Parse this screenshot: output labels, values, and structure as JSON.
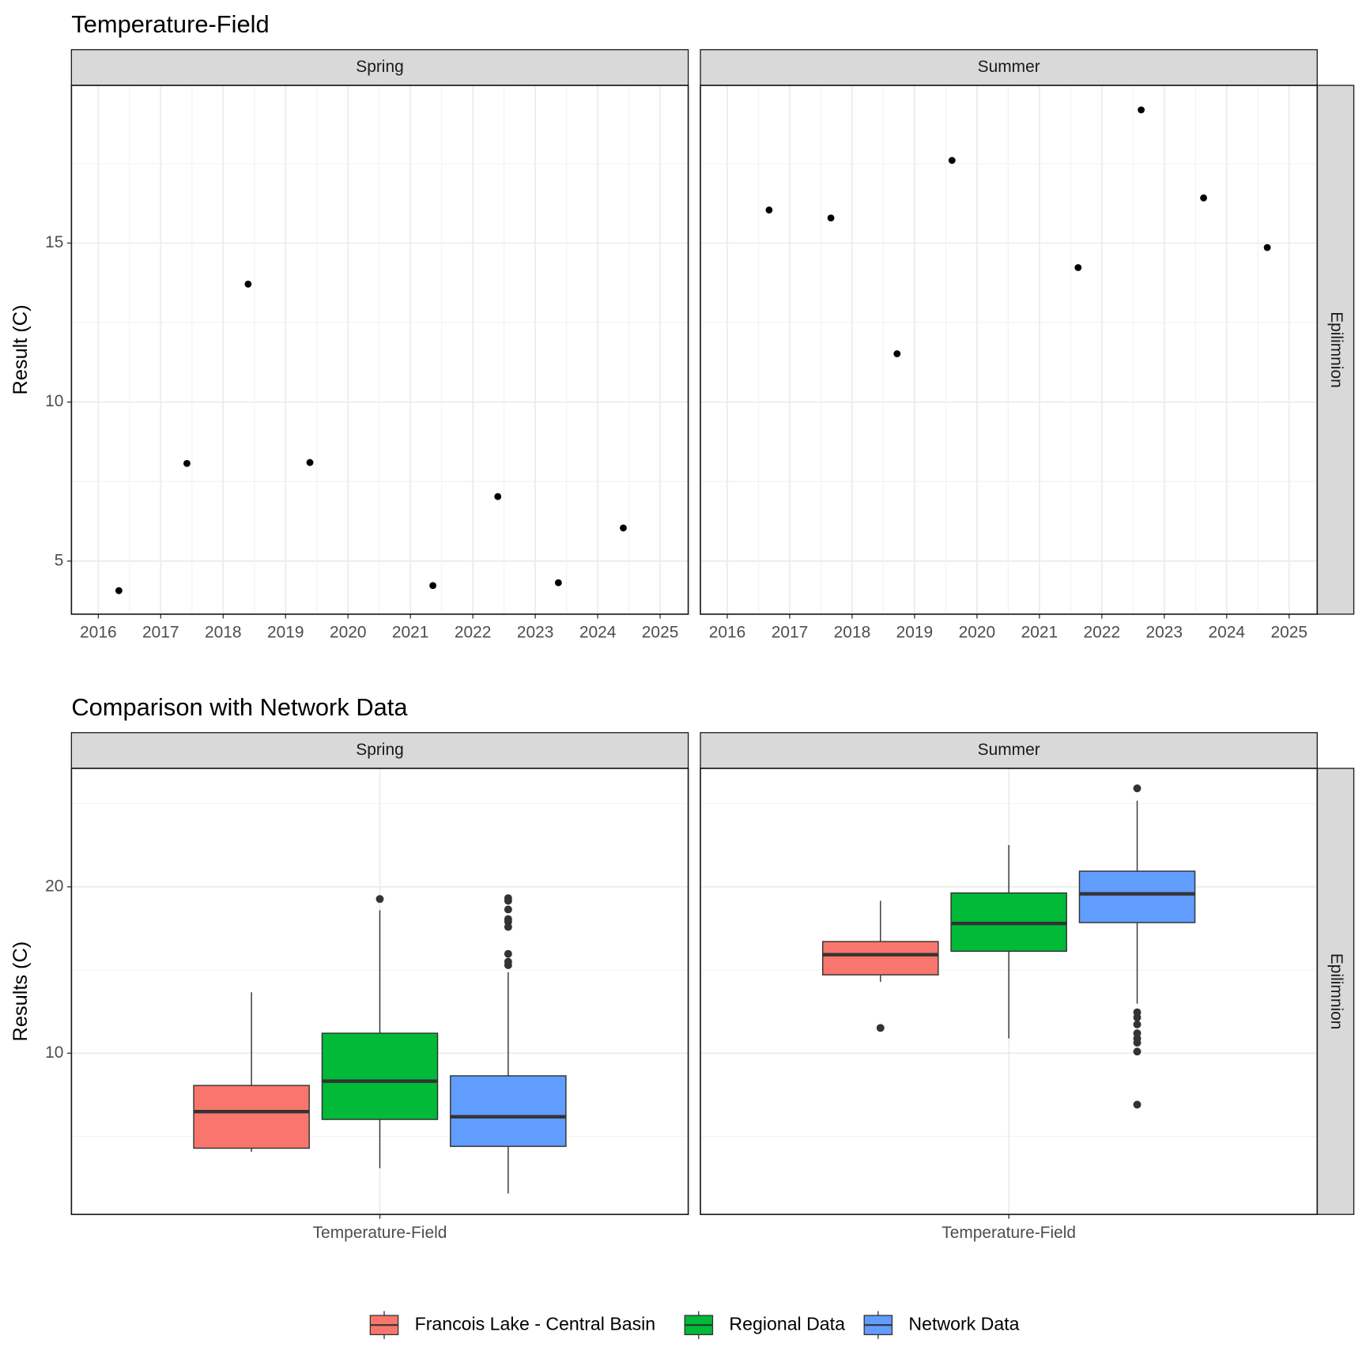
{
  "chart_data": [
    {
      "type": "scatter",
      "title": "Temperature-Field",
      "y_label": "Result (C)",
      "row_strip": "Epilimnion",
      "xlim": [
        2015.57,
        2025.45
      ],
      "xticks": [
        2016,
        2017,
        2018,
        2019,
        2020,
        2021,
        2022,
        2023,
        2024,
        2025
      ],
      "ylim": [
        3.33,
        19.96
      ],
      "yticks": [
        5,
        10,
        15
      ],
      "grid": true,
      "color": "#000000",
      "panels": [
        {
          "name": "Spring",
          "x": [
            2016.33,
            2017.42,
            2018.4,
            2019.39,
            2021.36,
            2022.4,
            2023.37,
            2024.41
          ],
          "values": [
            4.07,
            8.07,
            13.71,
            8.1,
            4.23,
            7.03,
            4.32,
            6.04
          ]
        },
        {
          "name": "Summer",
          "x": [
            2016.67,
            2017.66,
            2018.72,
            2019.6,
            2021.62,
            2022.63,
            2023.63,
            2024.65
          ],
          "values": [
            16.04,
            15.79,
            11.52,
            17.6,
            14.23,
            19.19,
            16.42,
            14.86
          ]
        }
      ]
    },
    {
      "type": "boxplot",
      "title": "Comparison with Network Data",
      "y_label": "Results (C)",
      "row_strip": "Epilimnion",
      "ylim": [
        0.31,
        27.12
      ],
      "yticks": [
        10,
        20
      ],
      "grid": true,
      "series": [
        {
          "name": "Francois Lake - Central Basin",
          "color": "#F8766D"
        },
        {
          "name": "Regional Data",
          "color": "#00BA38"
        },
        {
          "name": "Network Data",
          "color": "#619CFF"
        }
      ],
      "panels": [
        {
          "name": "Spring",
          "category": "Temperature-Field",
          "boxes": [
            {
              "low": 4.08,
              "q1": 4.29,
              "median": 6.49,
              "q3": 8.06,
              "high": 13.66,
              "outliers": []
            },
            {
              "low": 3.09,
              "q1": 6.02,
              "median": 8.32,
              "q3": 11.2,
              "high": 18.59,
              "outliers": [
                19.27
              ]
            },
            {
              "low": 1.57,
              "q1": 4.4,
              "median": 6.18,
              "q3": 8.64,
              "high": 14.87,
              "outliers": [
                15.29,
                15.5,
                15.97,
                17.59,
                17.91,
                18.06,
                18.64,
                19.16,
                19.32
              ]
            }
          ]
        },
        {
          "name": "Summer",
          "category": "Temperature-Field",
          "boxes": [
            {
              "low": 14.29,
              "q1": 14.71,
              "median": 15.92,
              "q3": 16.71,
              "high": 19.16,
              "outliers": [
                11.52
              ]
            },
            {
              "low": 10.89,
              "q1": 16.13,
              "median": 17.8,
              "q3": 19.63,
              "high": 22.51,
              "outliers": []
            },
            {
              "low": 12.98,
              "q1": 17.85,
              "median": 19.58,
              "q3": 20.94,
              "high": 25.18,
              "outliers": [
                25.92,
                12.46,
                12.15,
                11.73,
                11.2,
                10.89,
                10.63,
                10.1,
                6.91
              ]
            }
          ]
        }
      ]
    }
  ]
}
